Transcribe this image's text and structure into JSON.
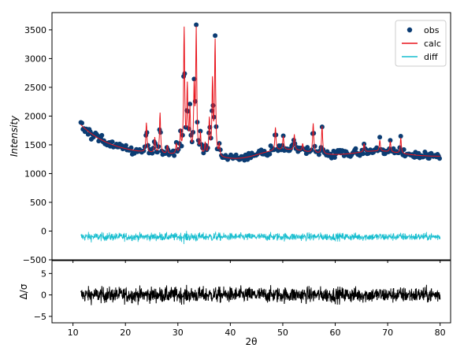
{
  "chart_data": [
    {
      "type": "scatter",
      "panel": "main",
      "ylabel": "Intensity",
      "xlim": [
        6,
        82
      ],
      "ylim": [
        -500,
        3800
      ],
      "xticks": [
        10,
        20,
        30,
        40,
        50,
        60,
        70,
        80
      ],
      "yticks": [
        -500,
        0,
        500,
        1000,
        1500,
        2000,
        2500,
        3000,
        3500
      ],
      "grid": false,
      "legend_position": "top-right",
      "x_range": [
        11.5,
        80
      ],
      "background": {
        "start_intensity": 1850,
        "decay_to": 1300,
        "amorphous_hump_center": 50,
        "amorphous_hump_height": 120,
        "baseline_min": 1190
      },
      "peaks": [
        {
          "x": 24.0,
          "y": 1880
        },
        {
          "x": 25.6,
          "y": 1620
        },
        {
          "x": 26.6,
          "y": 2050
        },
        {
          "x": 28.0,
          "y": 1480
        },
        {
          "x": 29.7,
          "y": 1500
        },
        {
          "x": 30.5,
          "y": 1700
        },
        {
          "x": 31.2,
          "y": 3480
        },
        {
          "x": 31.8,
          "y": 2450
        },
        {
          "x": 32.3,
          "y": 2050
        },
        {
          "x": 33.1,
          "y": 2400
        },
        {
          "x": 33.5,
          "y": 3440
        },
        {
          "x": 34.3,
          "y": 1650
        },
        {
          "x": 35.2,
          "y": 1500
        },
        {
          "x": 36.0,
          "y": 1900
        },
        {
          "x": 36.6,
          "y": 2550
        },
        {
          "x": 37.1,
          "y": 3260
        },
        {
          "x": 37.9,
          "y": 1480
        },
        {
          "x": 48.6,
          "y": 1800
        },
        {
          "x": 50.1,
          "y": 1650
        },
        {
          "x": 52.2,
          "y": 1680
        },
        {
          "x": 53.8,
          "y": 1520
        },
        {
          "x": 55.8,
          "y": 1870
        },
        {
          "x": 57.5,
          "y": 1820
        },
        {
          "x": 65.5,
          "y": 1520
        },
        {
          "x": 68.5,
          "y": 1580
        },
        {
          "x": 70.5,
          "y": 1560
        },
        {
          "x": 72.5,
          "y": 1620
        }
      ],
      "series": [
        {
          "name": "obs",
          "style": "markers",
          "color": "#0b3c73"
        },
        {
          "name": "calc",
          "style": "line",
          "color": "#e8141c"
        },
        {
          "name": "diff",
          "style": "line",
          "color": "#17becf",
          "offset": -100
        }
      ]
    },
    {
      "type": "line",
      "panel": "residual",
      "xlabel": "2θ",
      "ylabel": "Δ/σ",
      "xlim": [
        6,
        82
      ],
      "ylim": [
        -6.5,
        8
      ],
      "xticks": [
        10,
        20,
        30,
        40,
        50,
        60,
        70,
        80
      ],
      "yticks": [
        -5,
        0,
        5
      ],
      "series": [
        {
          "name": "Δ/σ",
          "color": "#000000"
        }
      ]
    }
  ]
}
